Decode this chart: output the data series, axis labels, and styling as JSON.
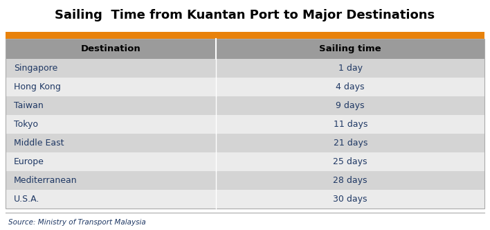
{
  "title": "Sailing  Time from Kuantan Port to Major Destinations",
  "title_fontsize": 13,
  "title_fontweight": "bold",
  "col_headers": [
    "Destination",
    "Sailing time"
  ],
  "rows": [
    [
      "Singapore",
      "1 day"
    ],
    [
      "Hong Kong",
      "4 days"
    ],
    [
      "Taiwan",
      "9 days"
    ],
    [
      "Tokyo",
      "11 days"
    ],
    [
      "Middle East",
      "21 days"
    ],
    [
      "Europe",
      "25 days"
    ],
    [
      "Mediterranean",
      "28 days"
    ],
    [
      "U.S.A.",
      "30 days"
    ]
  ],
  "source_text": "Source: Ministry of Transport Malaysia",
  "orange_bar_color": "#E8820C",
  "header_bg_color": "#9B9B9B",
  "header_text_color": "#000000",
  "row_odd_color": "#D4D4D4",
  "row_even_color": "#EBEBEB",
  "dest_text_color": "#1F3864",
  "value_text_color": "#1F3864",
  "outer_border_color": "#AAAAAA",
  "col_split": 0.44,
  "fig_width": 7.08,
  "fig_height": 3.32,
  "dpi": 100
}
